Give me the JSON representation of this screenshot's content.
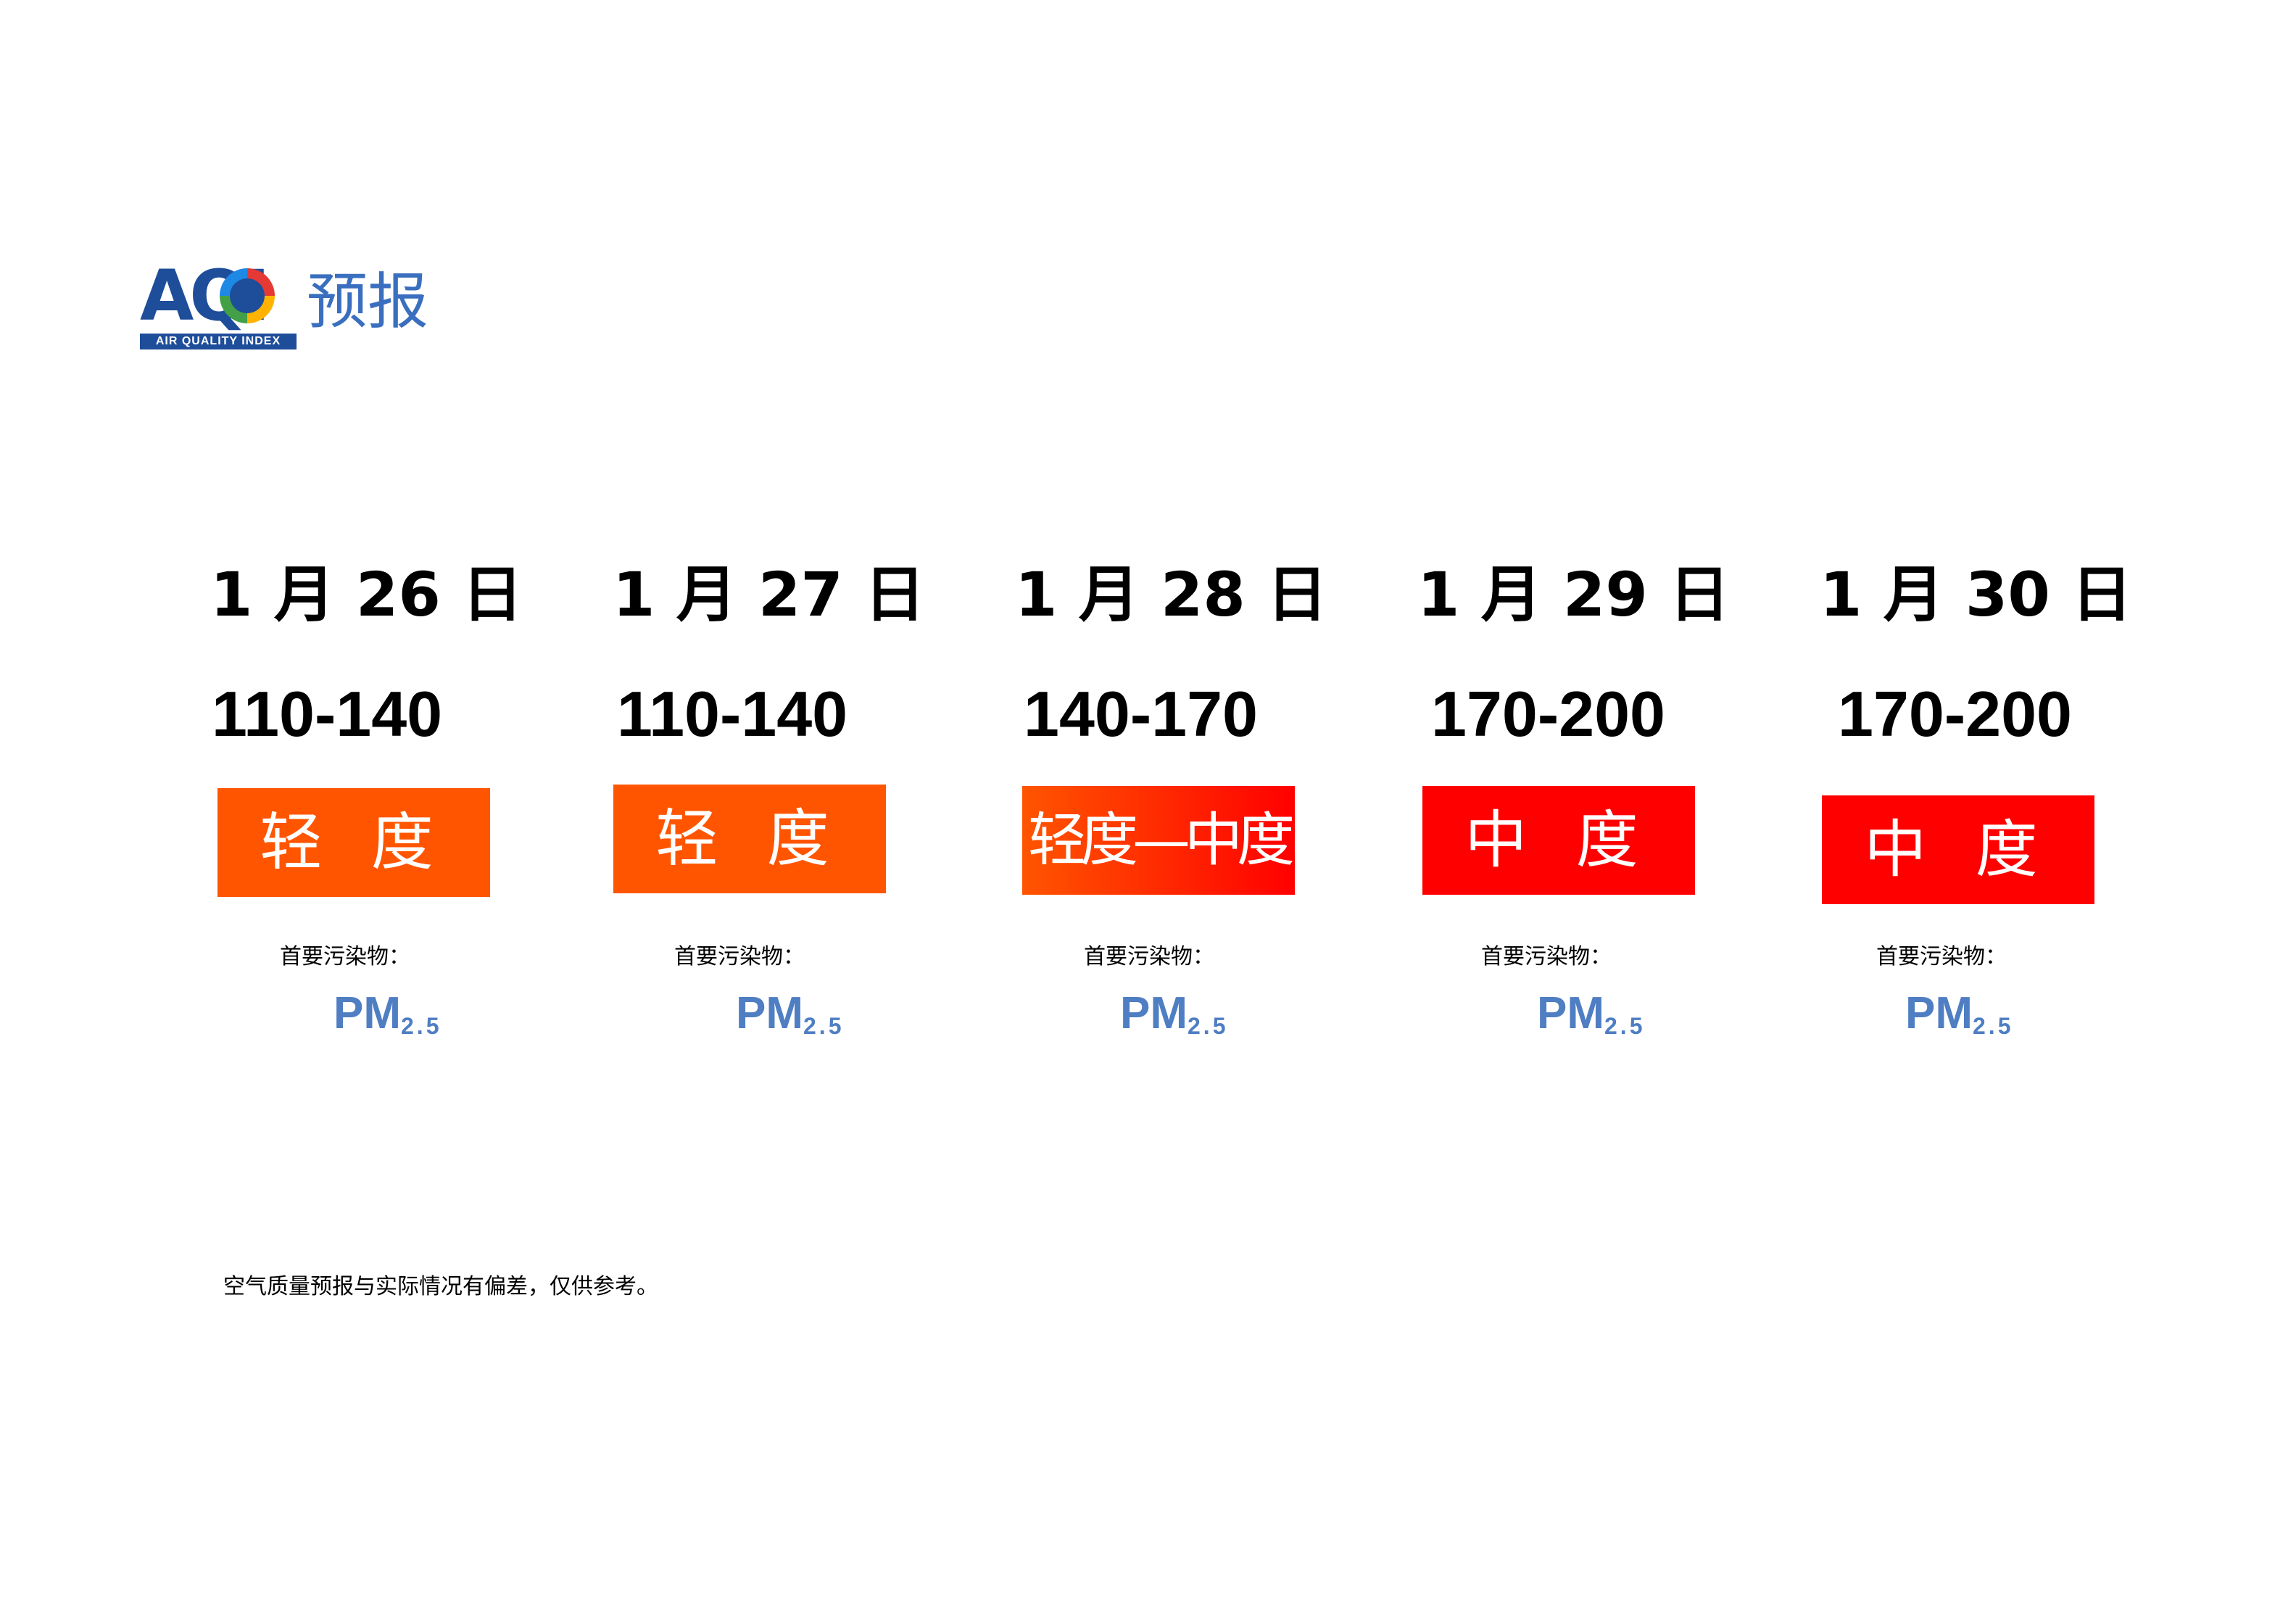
{
  "logo": {
    "letters": "AQI",
    "subtitle": "AIR QUALITY INDEX",
    "title_cn": "预报"
  },
  "forecast": [
    {
      "date": "1 月 26 日",
      "range": "110-140",
      "level": "轻 度",
      "level_color": "#ff5500",
      "pollutant_label": "首要污染物：",
      "pollutant": "PM",
      "pollutant_sub": "2.5"
    },
    {
      "date": "1 月 27 日",
      "range": "110-140",
      "level": "轻 度",
      "level_color": "#ff5500",
      "pollutant_label": "首要污染物：",
      "pollutant": "PM",
      "pollutant_sub": "2.5"
    },
    {
      "date": "1 月 28 日",
      "range": "140-170",
      "level": "轻度—中度",
      "level_color": "gradient-orange-red",
      "pollutant_label": "首要污染物：",
      "pollutant": "PM",
      "pollutant_sub": "2.5"
    },
    {
      "date": "1 月 29 日",
      "range": "170-200",
      "level": "中 度",
      "level_color": "#ff0000",
      "pollutant_label": "首要污染物：",
      "pollutant": "PM",
      "pollutant_sub": "2.5"
    },
    {
      "date": "1 月 30 日",
      "range": "170-200",
      "level": "中 度",
      "level_color": "#ff0000",
      "pollutant_label": "首要污染物：",
      "pollutant": "PM",
      "pollutant_sub": "2.5"
    }
  ],
  "disclaimer": "空气质量预报与实际情况有偏差，仅供参考。"
}
